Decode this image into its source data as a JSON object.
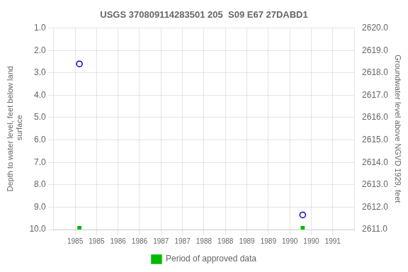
{
  "chart_data": {
    "type": "scatter",
    "title": "USGS 370809114283501 205  S09 E67 27DABD1",
    "ylabel": "Depth to water level, feet below land\n surface",
    "y2label": "Groundwater level above NGVD 1929, feet",
    "xlim": [
      1984.5,
      1991.5
    ],
    "xticks": [
      1985,
      {
        "value": 1985.5,
        "label": "1985"
      },
      1986,
      {
        "value": 1986.5,
        "label": "1986"
      },
      1987,
      {
        "value": 1987.5,
        "label": "1987"
      },
      1988,
      {
        "value": 1988.5,
        "label": "1988"
      },
      1989,
      {
        "value": 1989.5,
        "label": "1989"
      },
      1990,
      {
        "value": 1990.5,
        "label": "1990"
      },
      1991
    ],
    "ylim": [
      10.0,
      1.0
    ],
    "yticks": [
      {
        "value": 1,
        "label": "1.0"
      },
      {
        "value": 2,
        "label": "2.0"
      },
      {
        "value": 3,
        "label": "3.0"
      },
      {
        "value": 4,
        "label": "4.0"
      },
      {
        "value": 5,
        "label": "5.0"
      },
      {
        "value": 6,
        "label": "6.0"
      },
      {
        "value": 7,
        "label": "7.0"
      },
      {
        "value": 8,
        "label": "8.0"
      },
      {
        "value": 9,
        "label": "9.0"
      },
      {
        "value": 10,
        "label": "10.0"
      }
    ],
    "y2lim": [
      2611.0,
      2620.0
    ],
    "y2ticks": [
      {
        "value": 2611,
        "label": "2611.0"
      },
      {
        "value": 2612,
        "label": "2612.0"
      },
      {
        "value": 2613,
        "label": "2613.0"
      },
      {
        "value": 2614,
        "label": "2614.0"
      },
      {
        "value": 2615,
        "label": "2615.0"
      },
      {
        "value": 2616,
        "label": "2616.0"
      },
      {
        "value": 2617,
        "label": "2617.0"
      },
      {
        "value": 2618,
        "label": "2618.0"
      },
      {
        "value": 2619,
        "label": "2619.0"
      },
      {
        "value": 2620,
        "label": "2620.0"
      }
    ],
    "grid": true,
    "legend": "bottom",
    "series": [
      {
        "color": "#0000cc",
        "marker": "open_circle",
        "x": [
          1985.1,
          1990.3
        ],
        "values": [
          2.6,
          9.35
        ]
      },
      {
        "name": "Period of approved data",
        "color": "#00bb00",
        "marker": "square",
        "x": [
          1985.1,
          1990.3
        ],
        "values": [
          9.93,
          9.93
        ]
      }
    ]
  }
}
